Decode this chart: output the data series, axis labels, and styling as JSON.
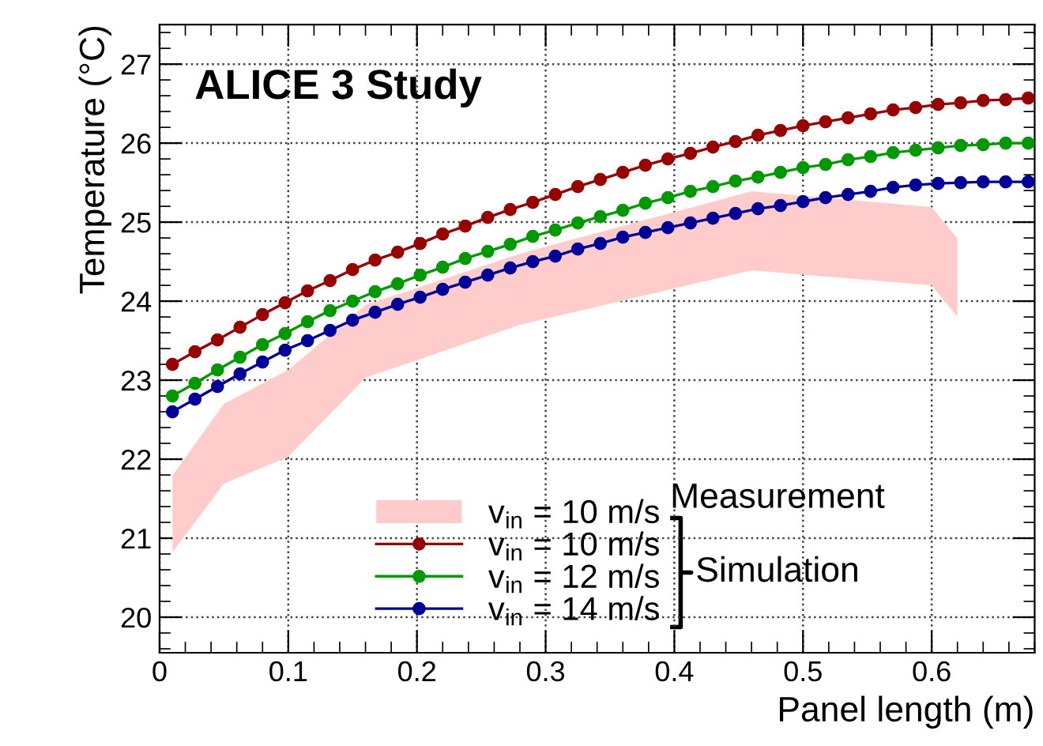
{
  "chart_data": {
    "type": "line",
    "xlabel": "Panel length (m)",
    "ylabel": "Temperature (°C)",
    "xlim": [
      0,
      0.68
    ],
    "ylim": [
      19.55,
      27.5
    ],
    "xticks": [
      0,
      0.1,
      0.2,
      0.3,
      0.4,
      0.5,
      0.6
    ],
    "yticks": [
      20,
      21,
      22,
      23,
      24,
      25,
      26,
      27
    ],
    "grid": true,
    "legend": "bottom",
    "marker": "circle",
    "x": [
      0.01,
      0.0275,
      0.045,
      0.0625,
      0.08,
      0.0975,
      0.115,
      0.1325,
      0.15,
      0.1675,
      0.185,
      0.2025,
      0.22,
      0.2375,
      0.255,
      0.2725,
      0.29,
      0.3075,
      0.325,
      0.3425,
      0.36,
      0.3775,
      0.395,
      0.4125,
      0.43,
      0.4475,
      0.465,
      0.4825,
      0.5,
      0.5175,
      0.535,
      0.5525,
      0.57,
      0.5875,
      0.605,
      0.6225,
      0.64,
      0.6575,
      0.675
    ],
    "series": [
      {
        "type": "area",
        "name": "v$_{in}$ = 10 m/s",
        "color": "#ffcccc",
        "x": [
          0.01,
          0.05,
          0.1,
          0.16,
          0.28,
          0.46,
          0.6,
          0.62
        ],
        "values": [
          null,
          null,
          null,
          null,
          null,
          null,
          null,
          null
        ],
        "lower": [
          20.82,
          21.69,
          22.03,
          23.03,
          23.7,
          24.39,
          24.2,
          23.8
        ],
        "upper": [
          21.79,
          22.7,
          23.13,
          23.95,
          24.6,
          25.39,
          25.19,
          24.79
        ]
      },
      {
        "name": "v$_{in}$ = 10 m/s",
        "color": "#990000",
        "values": [
          23.2,
          23.36,
          23.51,
          23.67,
          23.83,
          23.98,
          24.13,
          24.26,
          24.4,
          24.52,
          24.62,
          24.73,
          24.85,
          24.95,
          25.06,
          25.16,
          25.25,
          25.35,
          25.45,
          25.54,
          25.63,
          25.72,
          25.8,
          25.87,
          25.95,
          26.02,
          26.1,
          26.16,
          26.22,
          26.27,
          26.32,
          26.37,
          26.42,
          26.45,
          26.49,
          26.51,
          26.54,
          26.55,
          26.57
        ]
      },
      {
        "name": "v$_{in}$ = 12 m/s",
        "color": "#009900",
        "values": [
          22.8,
          22.96,
          23.13,
          23.29,
          23.45,
          23.59,
          23.74,
          23.88,
          24.0,
          24.12,
          24.22,
          24.33,
          24.43,
          24.54,
          24.63,
          24.72,
          24.82,
          24.9,
          24.99,
          25.07,
          25.15,
          25.24,
          25.31,
          25.39,
          25.45,
          25.52,
          25.57,
          25.63,
          25.69,
          25.73,
          25.79,
          25.83,
          25.88,
          25.91,
          25.94,
          25.97,
          25.98,
          26.0,
          26.0
        ]
      },
      {
        "name": "v$_{in}$ = 14 m/s",
        "color": "#000099",
        "values": [
          22.6,
          22.76,
          22.92,
          23.08,
          23.23,
          23.38,
          23.5,
          23.63,
          23.76,
          23.86,
          23.96,
          24.05,
          24.15,
          24.24,
          24.33,
          24.42,
          24.5,
          24.57,
          24.66,
          24.73,
          24.81,
          24.87,
          24.93,
          24.99,
          25.05,
          25.11,
          25.17,
          25.21,
          25.26,
          25.31,
          25.35,
          25.39,
          25.44,
          25.47,
          25.49,
          25.5,
          25.51,
          25.51,
          25.51
        ]
      }
    ],
    "annotations": [
      "ALICE 3 Study",
      "Measurement",
      "Simulation"
    ]
  }
}
